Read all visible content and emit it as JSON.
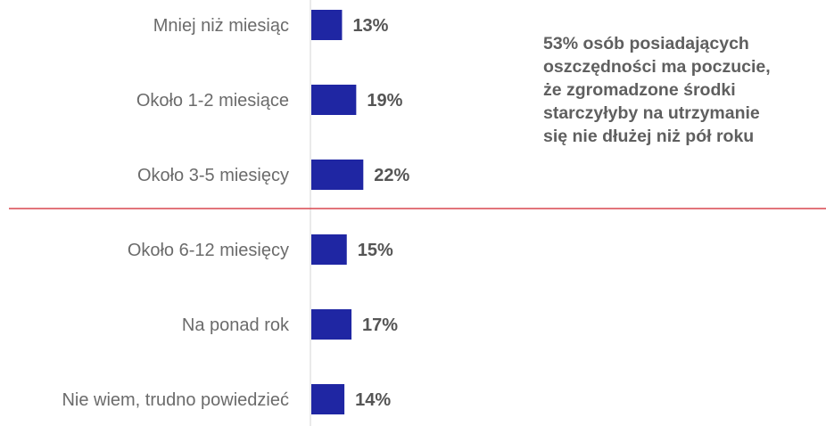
{
  "chart_data": {
    "type": "bar",
    "orientation": "horizontal",
    "categories": [
      "Mniej niż miesiąc",
      "Około 1-2 miesiące",
      "Około 3-5 miesięcy",
      "Około 6-12 miesięcy",
      "Na ponad rok",
      "Nie wiem, trudno powiedzieć"
    ],
    "values": [
      13,
      19,
      22,
      15,
      17,
      14
    ],
    "value_labels": [
      "13%",
      "19%",
      "22%",
      "15%",
      "17%",
      "14%"
    ],
    "unit": "%",
    "bar_color": "#1f26a3",
    "divider_color": "#d9464f",
    "divider_after_index": 2,
    "grid": false,
    "legend": "none",
    "annotation": "53% osób posiadających\noszczędności ma poczucie,\nże zgromadzone środki\nstarczyłyby na utrzymanie\nsię nie dłużej niż pół roku"
  }
}
